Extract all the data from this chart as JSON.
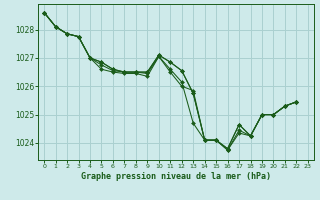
{
  "title": "Graphe pression niveau de la mer (hPa)",
  "background_color": "#ceeaea",
  "grid_color": "#aad0d0",
  "line_color": "#1a5c1a",
  "marker_color": "#1a5c1a",
  "xlim": [
    -0.5,
    23.5
  ],
  "ylim": [
    1023.4,
    1028.9
  ],
  "yticks": [
    1024,
    1025,
    1026,
    1027,
    1028
  ],
  "xticks": [
    0,
    1,
    2,
    3,
    4,
    5,
    6,
    7,
    8,
    9,
    10,
    11,
    12,
    13,
    14,
    15,
    16,
    17,
    18,
    19,
    20,
    21,
    22,
    23
  ],
  "series": [
    {
      "x": [
        0,
        1,
        2,
        3,
        4,
        5,
        6,
        7,
        8,
        9,
        10,
        11,
        12,
        13,
        14,
        15,
        16,
        17,
        18,
        19,
        20,
        21,
        22
      ],
      "y": [
        1028.6,
        1028.1,
        1027.85,
        1027.75,
        1027.0,
        1026.85,
        1026.6,
        1026.5,
        1026.5,
        1026.5,
        1027.1,
        1026.85,
        1026.55,
        1025.75,
        1024.1,
        1024.1,
        1023.8,
        1024.65,
        1024.25,
        1025.0,
        1025.0,
        1025.3,
        1025.45
      ]
    },
    {
      "x": [
        0,
        1,
        2,
        3,
        4,
        5,
        6,
        7,
        8,
        9,
        10,
        11,
        12,
        13,
        14,
        15,
        16,
        17,
        18,
        19,
        20,
        21,
        22
      ],
      "y": [
        1028.6,
        1028.1,
        1027.85,
        1027.75,
        1027.0,
        1026.85,
        1026.6,
        1026.5,
        1026.5,
        1026.5,
        1027.1,
        1026.85,
        1026.55,
        1025.75,
        1024.1,
        1024.1,
        1023.8,
        1024.65,
        1024.25,
        1025.0,
        1025.0,
        1025.3,
        1025.45
      ]
    },
    {
      "x": [
        0,
        1,
        2,
        3,
        4,
        5,
        6,
        7,
        8,
        9,
        10,
        11,
        12,
        13,
        14,
        15,
        16,
        17,
        18,
        19,
        20,
        21,
        22
      ],
      "y": [
        1028.6,
        1028.1,
        1027.85,
        1027.75,
        1027.0,
        1026.75,
        1026.55,
        1026.5,
        1026.5,
        1026.45,
        1027.05,
        1026.6,
        1026.15,
        1024.7,
        1024.1,
        1024.1,
        1023.75,
        1024.45,
        1024.25,
        1025.0,
        1025.0,
        1025.3,
        1025.45
      ]
    },
    {
      "x": [
        0,
        1,
        2,
        3,
        4,
        5,
        6,
        7,
        8,
        9,
        10,
        11,
        12,
        13,
        14,
        15,
        16,
        17,
        18,
        19,
        20,
        21,
        22
      ],
      "y": [
        1028.6,
        1028.1,
        1027.85,
        1027.75,
        1027.0,
        1026.6,
        1026.5,
        1026.45,
        1026.45,
        1026.35,
        1027.05,
        1026.5,
        1026.0,
        1025.85,
        1024.1,
        1024.1,
        1023.75,
        1024.35,
        1024.25,
        1025.0,
        1025.0,
        1025.3,
        1025.45
      ]
    }
  ]
}
